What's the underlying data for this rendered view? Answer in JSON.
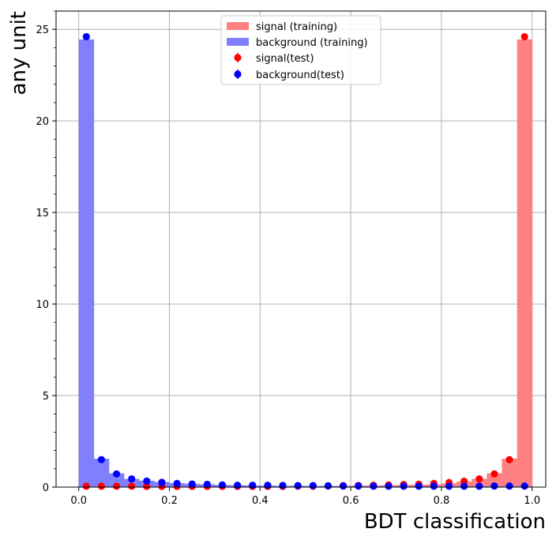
{
  "chart_data": {
    "type": "histogram",
    "xlabel": "BDT classification",
    "ylabel": "any unit",
    "xlim": [
      -0.05,
      1.03
    ],
    "ylim": [
      0,
      26
    ],
    "xticks": [
      "0.0",
      "0.2",
      "0.4",
      "0.6",
      "0.8",
      "1.0"
    ],
    "xtick_values": [
      0.0,
      0.2,
      0.4,
      0.6,
      0.8,
      1.0
    ],
    "yticks": [
      "0",
      "5",
      "10",
      "15",
      "20",
      "25"
    ],
    "ytick_values": [
      0,
      5,
      10,
      15,
      20,
      25
    ],
    "grid": true,
    "legend_position": "top-center",
    "bin_edges": [
      0.0,
      0.0333,
      0.0667,
      0.1,
      0.1333,
      0.1667,
      0.2,
      0.2333,
      0.2667,
      0.3,
      0.3333,
      0.3667,
      0.4,
      0.4333,
      0.4667,
      0.5,
      0.5333,
      0.5667,
      0.6,
      0.6333,
      0.6667,
      0.7,
      0.7333,
      0.7667,
      0.8,
      0.8333,
      0.8667,
      0.9,
      0.9333,
      0.9667,
      1.0
    ],
    "bin_centers": [
      0.0167,
      0.05,
      0.0833,
      0.1167,
      0.15,
      0.1833,
      0.2167,
      0.25,
      0.2833,
      0.3167,
      0.35,
      0.3833,
      0.4167,
      0.45,
      0.4833,
      0.5167,
      0.55,
      0.5833,
      0.6167,
      0.65,
      0.6833,
      0.7167,
      0.75,
      0.7833,
      0.8167,
      0.85,
      0.8833,
      0.9167,
      0.95,
      0.9833
    ],
    "series": [
      {
        "name": "signal (training)",
        "kind": "hist",
        "color": "#ff8080",
        "values": [
          0.05,
          0.04,
          0.05,
          0.05,
          0.05,
          0.05,
          0.05,
          0.05,
          0.05,
          0.05,
          0.05,
          0.05,
          0.05,
          0.05,
          0.05,
          0.05,
          0.06,
          0.07,
          0.08,
          0.09,
          0.1,
          0.12,
          0.13,
          0.15,
          0.2,
          0.3,
          0.45,
          0.75,
          1.55,
          24.45
        ]
      },
      {
        "name": "background (training)",
        "kind": "hist",
        "color": "#8080ff",
        "values": [
          24.45,
          1.55,
          0.75,
          0.45,
          0.35,
          0.28,
          0.22,
          0.18,
          0.15,
          0.12,
          0.1,
          0.09,
          0.08,
          0.07,
          0.07,
          0.06,
          0.06,
          0.05,
          0.05,
          0.05,
          0.05,
          0.05,
          0.05,
          0.05,
          0.05,
          0.05,
          0.05,
          0.05,
          0.05,
          0.05
        ]
      },
      {
        "name": "signal(test)",
        "kind": "points",
        "color": "#ff0000",
        "values": [
          0.05,
          0.05,
          0.05,
          0.05,
          0.04,
          0.04,
          0.04,
          0.04,
          0.04,
          0.04,
          0.04,
          0.04,
          0.04,
          0.04,
          0.05,
          0.05,
          0.06,
          0.08,
          0.09,
          0.1,
          0.12,
          0.14,
          0.16,
          0.2,
          0.25,
          0.32,
          0.45,
          0.72,
          1.5,
          24.6
        ]
      },
      {
        "name": "background(test)",
        "kind": "points",
        "color": "#0000ff",
        "values": [
          24.6,
          1.5,
          0.72,
          0.45,
          0.33,
          0.26,
          0.2,
          0.17,
          0.15,
          0.12,
          0.1,
          0.1,
          0.1,
          0.09,
          0.08,
          0.08,
          0.07,
          0.06,
          0.06,
          0.05,
          0.05,
          0.05,
          0.05,
          0.05,
          0.05,
          0.05,
          0.05,
          0.06,
          0.06,
          0.06
        ]
      }
    ]
  }
}
